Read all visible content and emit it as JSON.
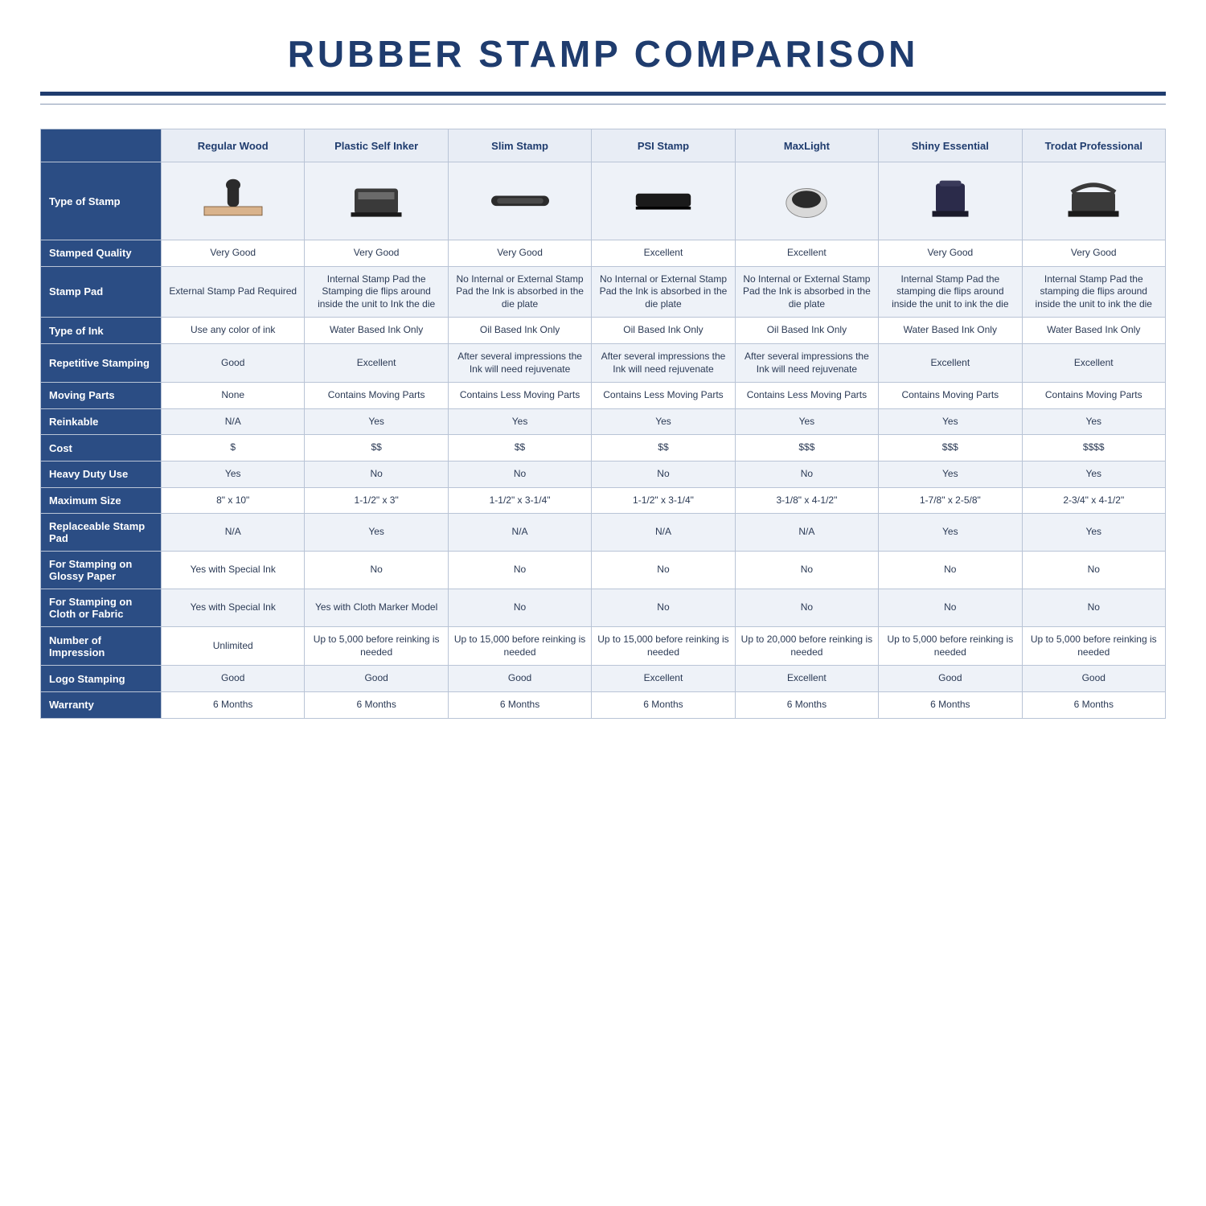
{
  "title": "RUBBER STAMP COMPARISON",
  "colors": {
    "header_bg": "#e8edf5",
    "row_label_bg": "#2b4d84",
    "row_label_text": "#ffffff",
    "border": "#b9c4d6",
    "title_color": "#1f3c6e",
    "alt_row_bg": "#eef2f8",
    "body_text": "#2b3a55",
    "page_bg": "#ffffff"
  },
  "columns": [
    "Regular Wood",
    "Plastic Self Inker",
    "Slim Stamp",
    "PSI Stamp",
    "MaxLight",
    "Shiny Essential",
    "Trodat Professional"
  ],
  "rows": [
    {
      "label": "Type of Stamp",
      "image_row": true,
      "cells": [
        "",
        "",
        "",
        "",
        "",
        "",
        ""
      ]
    },
    {
      "label": "Stamped Quality",
      "cells": [
        "Very Good",
        "Very Good",
        "Very Good",
        "Excellent",
        "Excellent",
        "Very Good",
        "Very Good"
      ]
    },
    {
      "label": "Stamp Pad",
      "cells": [
        "External Stamp Pad Required",
        "Internal Stamp Pad the Stamping die flips around inside the unit to Ink the die",
        "No Internal or External Stamp Pad the Ink is absorbed in the die plate",
        "No Internal or External Stamp Pad the Ink is absorbed in the die plate",
        "No Internal or External Stamp Pad the Ink is absorbed in the die plate",
        "Internal Stamp Pad the stamping die flips around inside the unit to ink the die",
        "Internal Stamp Pad the stamping die flips around inside the unit to ink the die"
      ]
    },
    {
      "label": "Type of Ink",
      "cells": [
        "Use any color of ink",
        "Water Based Ink Only",
        "Oil Based Ink Only",
        "Oil Based Ink Only",
        "Oil Based Ink Only",
        "Water Based Ink Only",
        "Water Based Ink Only"
      ]
    },
    {
      "label": "Repetitive Stamping",
      "cells": [
        "Good",
        "Excellent",
        "After several impressions the Ink will need rejuvenate",
        "After several impressions the Ink will need rejuvenate",
        "After several impressions the Ink will need rejuvenate",
        "Excellent",
        "Excellent"
      ]
    },
    {
      "label": "Moving Parts",
      "cells": [
        "None",
        "Contains Moving Parts",
        "Contains Less Moving Parts",
        "Contains Less Moving Parts",
        "Contains Less Moving Parts",
        "Contains Moving Parts",
        "Contains Moving Parts"
      ]
    },
    {
      "label": "Reinkable",
      "cells": [
        "N/A",
        "Yes",
        "Yes",
        "Yes",
        "Yes",
        "Yes",
        "Yes"
      ]
    },
    {
      "label": "Cost",
      "cells": [
        "$",
        "$$",
        "$$",
        "$$",
        "$$$",
        "$$$",
        "$$$$"
      ]
    },
    {
      "label": "Heavy Duty Use",
      "cells": [
        "Yes",
        "No",
        "No",
        "No",
        "No",
        "Yes",
        "Yes"
      ]
    },
    {
      "label": "Maximum Size",
      "cells": [
        "8\" x 10\"",
        "1-1/2\" x 3\"",
        "1-1/2\" x 3-1/4\"",
        "1-1/2\" x 3-1/4\"",
        "3-1/8\" x 4-1/2\"",
        "1-7/8\" x 2-5/8\"",
        "2-3/4\" x 4-1/2\""
      ]
    },
    {
      "label": "Replaceable Stamp Pad",
      "cells": [
        "N/A",
        "Yes",
        "N/A",
        "N/A",
        "N/A",
        "Yes",
        "Yes"
      ]
    },
    {
      "label": "For Stamping on Glossy Paper",
      "cells": [
        "Yes with Special Ink",
        "No",
        "No",
        "No",
        "No",
        "No",
        "No"
      ]
    },
    {
      "label": "For Stamping on Cloth or Fabric",
      "cells": [
        "Yes with Special Ink",
        "Yes with Cloth Marker Model",
        "No",
        "No",
        "No",
        "No",
        "No"
      ]
    },
    {
      "label": "Number of Impression",
      "cells": [
        "Unlimited",
        "Up to 5,000 before reinking is needed",
        "Up to 15,000 before reinking is needed",
        "Up to 15,000 before reinking is needed",
        "Up to 20,000 before reinking is needed",
        "Up to 5,000 before reinking is needed",
        "Up to 5,000 before reinking is needed"
      ]
    },
    {
      "label": "Logo Stamping",
      "cells": [
        "Good",
        "Good",
        "Good",
        "Excellent",
        "Excellent",
        "Good",
        "Good"
      ]
    },
    {
      "label": "Warranty",
      "cells": [
        "6 Months",
        "6 Months",
        "6 Months",
        "6 Months",
        "6 Months",
        "6 Months",
        "6 Months"
      ]
    }
  ],
  "icons": [
    "wood-stamp-icon",
    "plastic-self-inker-icon",
    "slim-stamp-icon",
    "psi-stamp-icon",
    "maxlight-stamp-icon",
    "shiny-essential-icon",
    "trodat-professional-icon"
  ]
}
